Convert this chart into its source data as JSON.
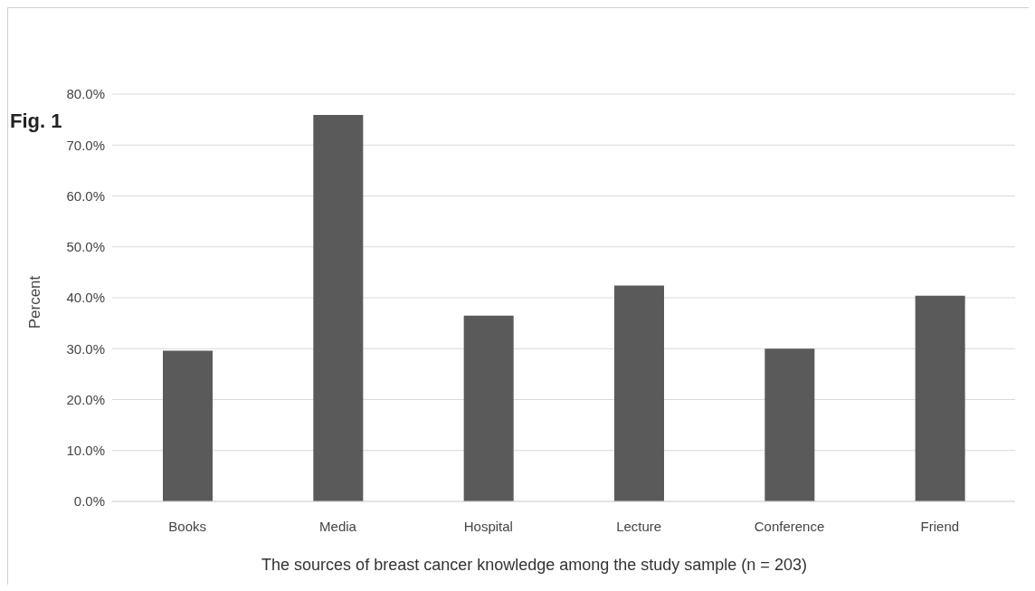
{
  "chart_data": {
    "type": "bar",
    "title": "Fig. 1",
    "xlabel": "The sources of breast cancer knowledge among the study sample (n = 203)",
    "ylabel": "Percent",
    "categories": [
      "Books",
      "Media",
      "Hospital",
      "Lecture",
      "Conference",
      "Friend"
    ],
    "values": [
      29.6,
      75.9,
      36.5,
      42.4,
      30.0,
      40.4
    ],
    "color": "#5a5a5a",
    "ylim": [
      0,
      80
    ],
    "yticks": [
      {
        "value": 0,
        "label": "0.0%"
      },
      {
        "value": 10,
        "label": "10.0%"
      },
      {
        "value": 20,
        "label": "20.0%"
      },
      {
        "value": 30,
        "label": "30.0%"
      },
      {
        "value": 40,
        "label": "40.0%"
      },
      {
        "value": 50,
        "label": "50.0%"
      },
      {
        "value": 60,
        "label": "60.0%"
      },
      {
        "value": 70,
        "label": "70.0%"
      },
      {
        "value": 80,
        "label": "80.0%"
      }
    ],
    "grid": "y"
  }
}
